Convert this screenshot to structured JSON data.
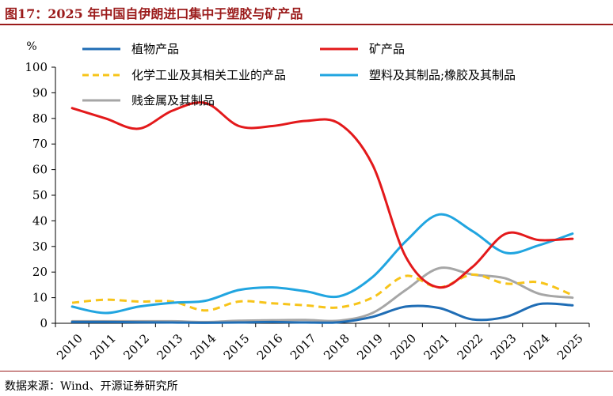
{
  "figure": {
    "title": "图17：2025 年中国自伊朗进口集中于塑胶与矿产品",
    "source": "数据来源：Wind、开源证券研究所"
  },
  "colors": {
    "accent": "#9b1b1b",
    "axis": "#000000"
  },
  "chart_data": {
    "type": "line",
    "unit_label": "%",
    "ylim": [
      0,
      100
    ],
    "yticks": [
      0,
      10,
      20,
      30,
      40,
      50,
      60,
      70,
      80,
      90,
      100
    ],
    "categories": [
      "2010",
      "2011",
      "2012",
      "2013",
      "2014",
      "2015",
      "2016",
      "2017",
      "2018",
      "2019",
      "2020",
      "2021",
      "2022",
      "2023",
      "2024",
      "2025"
    ],
    "grid": false,
    "legend_position": "top",
    "series": [
      {
        "name": "植物产品",
        "color": "#1f6db5",
        "dash": "solid",
        "values": [
          0.5,
          0.5,
          0.4,
          0.3,
          0.2,
          0.3,
          0.5,
          0.3,
          0.4,
          2.5,
          6.5,
          6.0,
          1.5,
          2.5,
          7.5,
          7.0
        ]
      },
      {
        "name": "矿产品",
        "color": "#e3191b",
        "dash": "solid",
        "values": [
          84,
          80,
          76,
          83,
          86,
          77,
          77,
          79,
          78,
          62,
          26,
          14,
          22,
          35,
          32.5,
          33
        ]
      },
      {
        "name": "化学工业及其相关工业的产品",
        "color": "#f7c41a",
        "dash": "dashed",
        "values": [
          8,
          9.2,
          8.5,
          8.5,
          5,
          8.5,
          7.8,
          7,
          6.2,
          10,
          18.5,
          14,
          19,
          15.5,
          16,
          11
        ]
      },
      {
        "name": "塑料及其制品;橡胶及其制品",
        "color": "#21a5e0",
        "dash": "solid",
        "values": [
          6.5,
          4,
          6.5,
          8,
          8.8,
          13,
          14,
          12.5,
          10.5,
          18,
          32,
          42.5,
          36,
          27.5,
          30.5,
          35
        ]
      },
      {
        "name": "贱金属及其制品",
        "color": "#a6a6a6",
        "dash": "solid",
        "values": [
          0.8,
          0.8,
          0.8,
          0.8,
          0.5,
          1,
          1.2,
          1.3,
          1,
          4,
          13,
          21.5,
          19,
          17.5,
          11.5,
          10
        ]
      }
    ]
  }
}
